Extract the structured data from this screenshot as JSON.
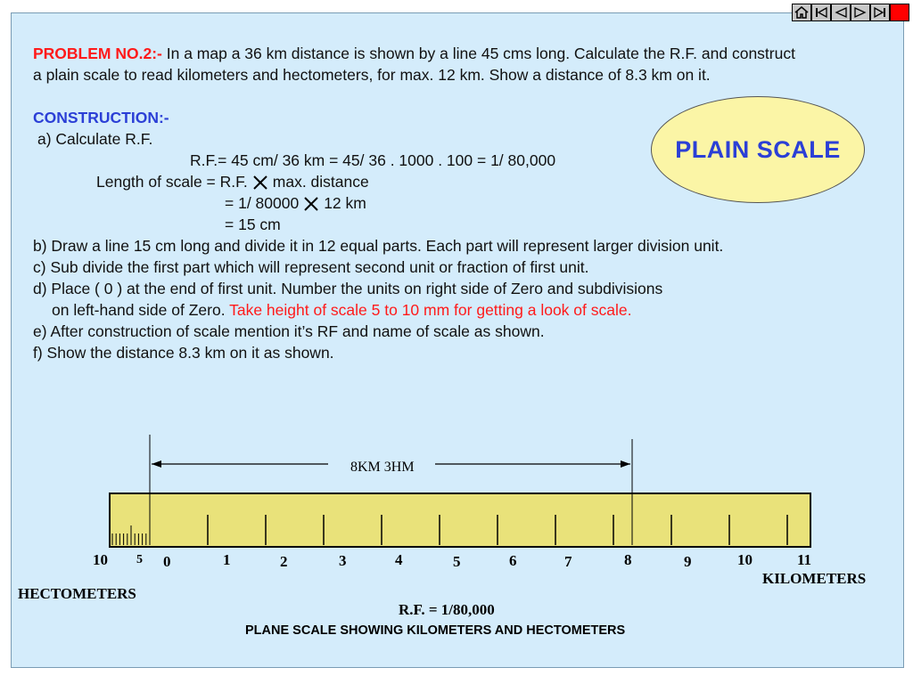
{
  "nav": {
    "buttons": [
      "home-icon",
      "first-icon",
      "prev-icon",
      "next-icon",
      "last-icon",
      "stop"
    ]
  },
  "problem": {
    "label": "PROBLEM NO.2:-",
    "line1": " In a map a 36 km distance is shown by a line 45 cms long. Calculate the R.F. and construct",
    "line2": "a plain scale to read kilometers and hectometers, for max. 12 km. Show a distance of 8.3 km on it."
  },
  "construction": {
    "heading": "CONSTRUCTION:-",
    "a": "a) Calculate R.F.",
    "rf_calc": "R.F.= 45 cm/ 36 km = 45/ 36 . 1000 . 100 = 1/ 80,000",
    "length_pre": "Length of scale = R.F.",
    "length_post": "max. distance",
    "eq1_pre": "= 1/ 80000",
    "eq1_post": "12 km",
    "eq2": "= 15 cm",
    "b": "b) Draw a line 15 cm long and divide it in 12 equal parts. Each part will represent larger division unit.",
    "c": "c) Sub divide the first part which will represent second unit or fraction of first unit.",
    "d1": "d) Place ( 0 ) at the end of first unit. Number the units on right side of Zero and subdivisions",
    "d2_black": "on left-hand side of Zero.",
    "d2_red": " Take height of scale 5 to 10 mm for getting a look of scale.",
    "e": "e) After construction of scale mention it’s RF and name of scale as shown.",
    "f": " f) Show the distance 8.3 km on it as shown."
  },
  "badge": {
    "text": "PLAIN SCALE"
  },
  "scale": {
    "distance_label": "8KM  3HM",
    "left_labels": [
      "10",
      "5"
    ],
    "km_labels": [
      "0",
      "1",
      "2",
      "3",
      "4",
      "5",
      "6",
      "7",
      "8",
      "9",
      "10",
      "11"
    ],
    "kilometers_label": "KILOMETERS",
    "hectometers_label": "HECTOMETERS",
    "rf_label": "R.F. = 1/80,000",
    "caption": "PLANE SCALE SHOWING KILOMETERS AND HECTOMETERS"
  },
  "colors": {
    "background": "#d4ecfb",
    "scale_fill": "#e9e27a",
    "red": "#ff1a1a",
    "blue": "#2b3fd6"
  }
}
